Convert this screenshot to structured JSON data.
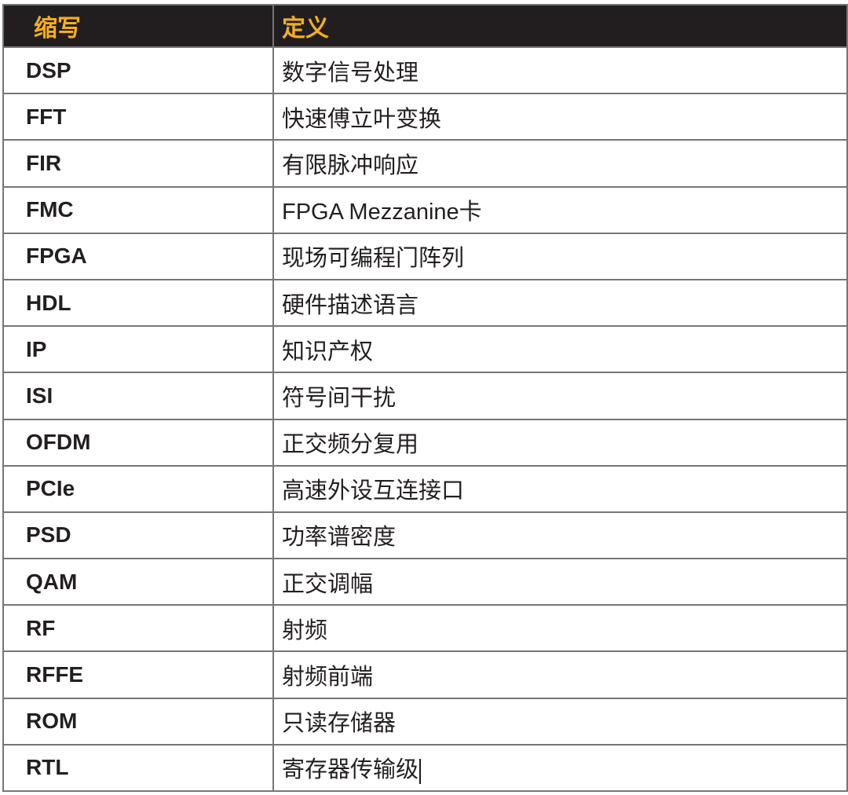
{
  "colors": {
    "header_bg": "#221E1F",
    "header_text": "#F2AE24",
    "border": "#767577",
    "body_text": "#231F20"
  },
  "table": {
    "columns": [
      {
        "key": "abbr",
        "label": "缩写"
      },
      {
        "key": "def",
        "label": "定义"
      }
    ],
    "rows": [
      {
        "abbr": "DSP",
        "def": "数字信号处理"
      },
      {
        "abbr": "FFT",
        "def": "快速傅立叶变换"
      },
      {
        "abbr": "FIR",
        "def": "有限脉冲响应"
      },
      {
        "abbr": "FMC",
        "def": "FPGA Mezzanine卡"
      },
      {
        "abbr": "FPGA",
        "def": "现场可编程门阵列"
      },
      {
        "abbr": "HDL",
        "def": "硬件描述语言"
      },
      {
        "abbr": "IP",
        "def": "知识产权"
      },
      {
        "abbr": "ISI",
        "def": "符号间干扰"
      },
      {
        "abbr": "OFDM",
        "def": "正交频分复用"
      },
      {
        "abbr": "PCIe",
        "def": "高速外设互连接口"
      },
      {
        "abbr": "PSD",
        "def": "功率谱密度"
      },
      {
        "abbr": "QAM",
        "def": "正交调幅"
      },
      {
        "abbr": "RF",
        "def": "射频"
      },
      {
        "abbr": "RFFE",
        "def": "射频前端"
      },
      {
        "abbr": "ROM",
        "def": "只读存储器"
      },
      {
        "abbr": "RTL",
        "def": "寄存器传输级"
      }
    ],
    "caret": {
      "visible": true,
      "after_row_index": 15
    }
  }
}
